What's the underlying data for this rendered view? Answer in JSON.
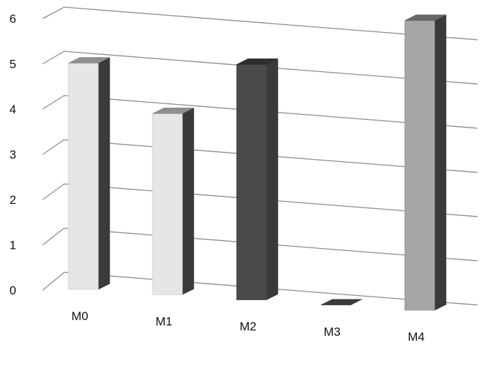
{
  "chart_data": {
    "type": "bar",
    "categories": [
      "M0",
      "M1",
      "M2",
      "M3",
      "M4"
    ],
    "values": [
      5.0,
      4.0,
      5.2,
      0.0,
      6.4
    ],
    "bar_colors": [
      "#e6e6e6",
      "#e6e6e6",
      "#4a4a4a",
      "#4a4a4a",
      "#a6a6a6"
    ],
    "ylim": [
      0,
      6
    ],
    "yticks": [
      "0",
      "1",
      "2",
      "3",
      "4",
      "5",
      "6"
    ],
    "title": "",
    "xlabel": "",
    "ylabel": "",
    "grid": true,
    "legend": "none",
    "style": "3d-column"
  }
}
